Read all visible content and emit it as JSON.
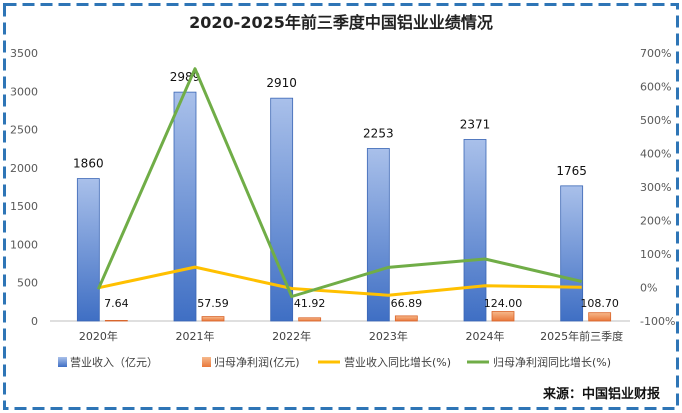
{
  "chart_data": {
    "type": "bar",
    "title": "2020-2025年前三季度中国铝业业绩情况",
    "categories": [
      "2020年",
      "2021年",
      "2022年",
      "2023年",
      "2024年",
      "2025年前三季度"
    ],
    "series": [
      {
        "name": "营业收入（亿元）",
        "axis": "left",
        "kind": "bar",
        "color": "#4472C4",
        "values": [
          1860,
          2989,
          2910,
          2253,
          2371,
          1765
        ],
        "labels": [
          "1860",
          "2989",
          "2910",
          "2253",
          "2371",
          "1765"
        ]
      },
      {
        "name": "归母净利润(亿元)",
        "axis": "left",
        "kind": "bar",
        "color": "#ED7D31",
        "values": [
          7.64,
          57.59,
          41.92,
          66.89,
          124.0,
          108.7
        ],
        "labels": [
          "7.64",
          "57.59",
          "41.92",
          "66.89",
          "124.00",
          "108.70"
        ]
      },
      {
        "name": "营业收入同比增长(%)",
        "axis": "right",
        "kind": "line",
        "color": "#FFC000",
        "values": [
          -1,
          61,
          -3,
          -23,
          5,
          1
        ]
      },
      {
        "name": "归母净利润同比增长(%)",
        "axis": "right",
        "kind": "line",
        "color": "#70AD47",
        "values": [
          -5,
          653,
          -27,
          60,
          85,
          18
        ]
      }
    ],
    "y_left": {
      "min": 0,
      "max": 3500,
      "ticks": [
        "0",
        "500",
        "1000",
        "1500",
        "2000",
        "2500",
        "3000",
        "3500"
      ]
    },
    "y_right": {
      "min": -100,
      "max": 700,
      "ticks": [
        "-100%",
        "0%",
        "100%",
        "200%",
        "300%",
        "400%",
        "500%",
        "600%",
        "700%"
      ]
    },
    "grid": false,
    "legend": "bottom",
    "source": "来源：中国铝业财报",
    "border_color": "#2E75B6"
  }
}
